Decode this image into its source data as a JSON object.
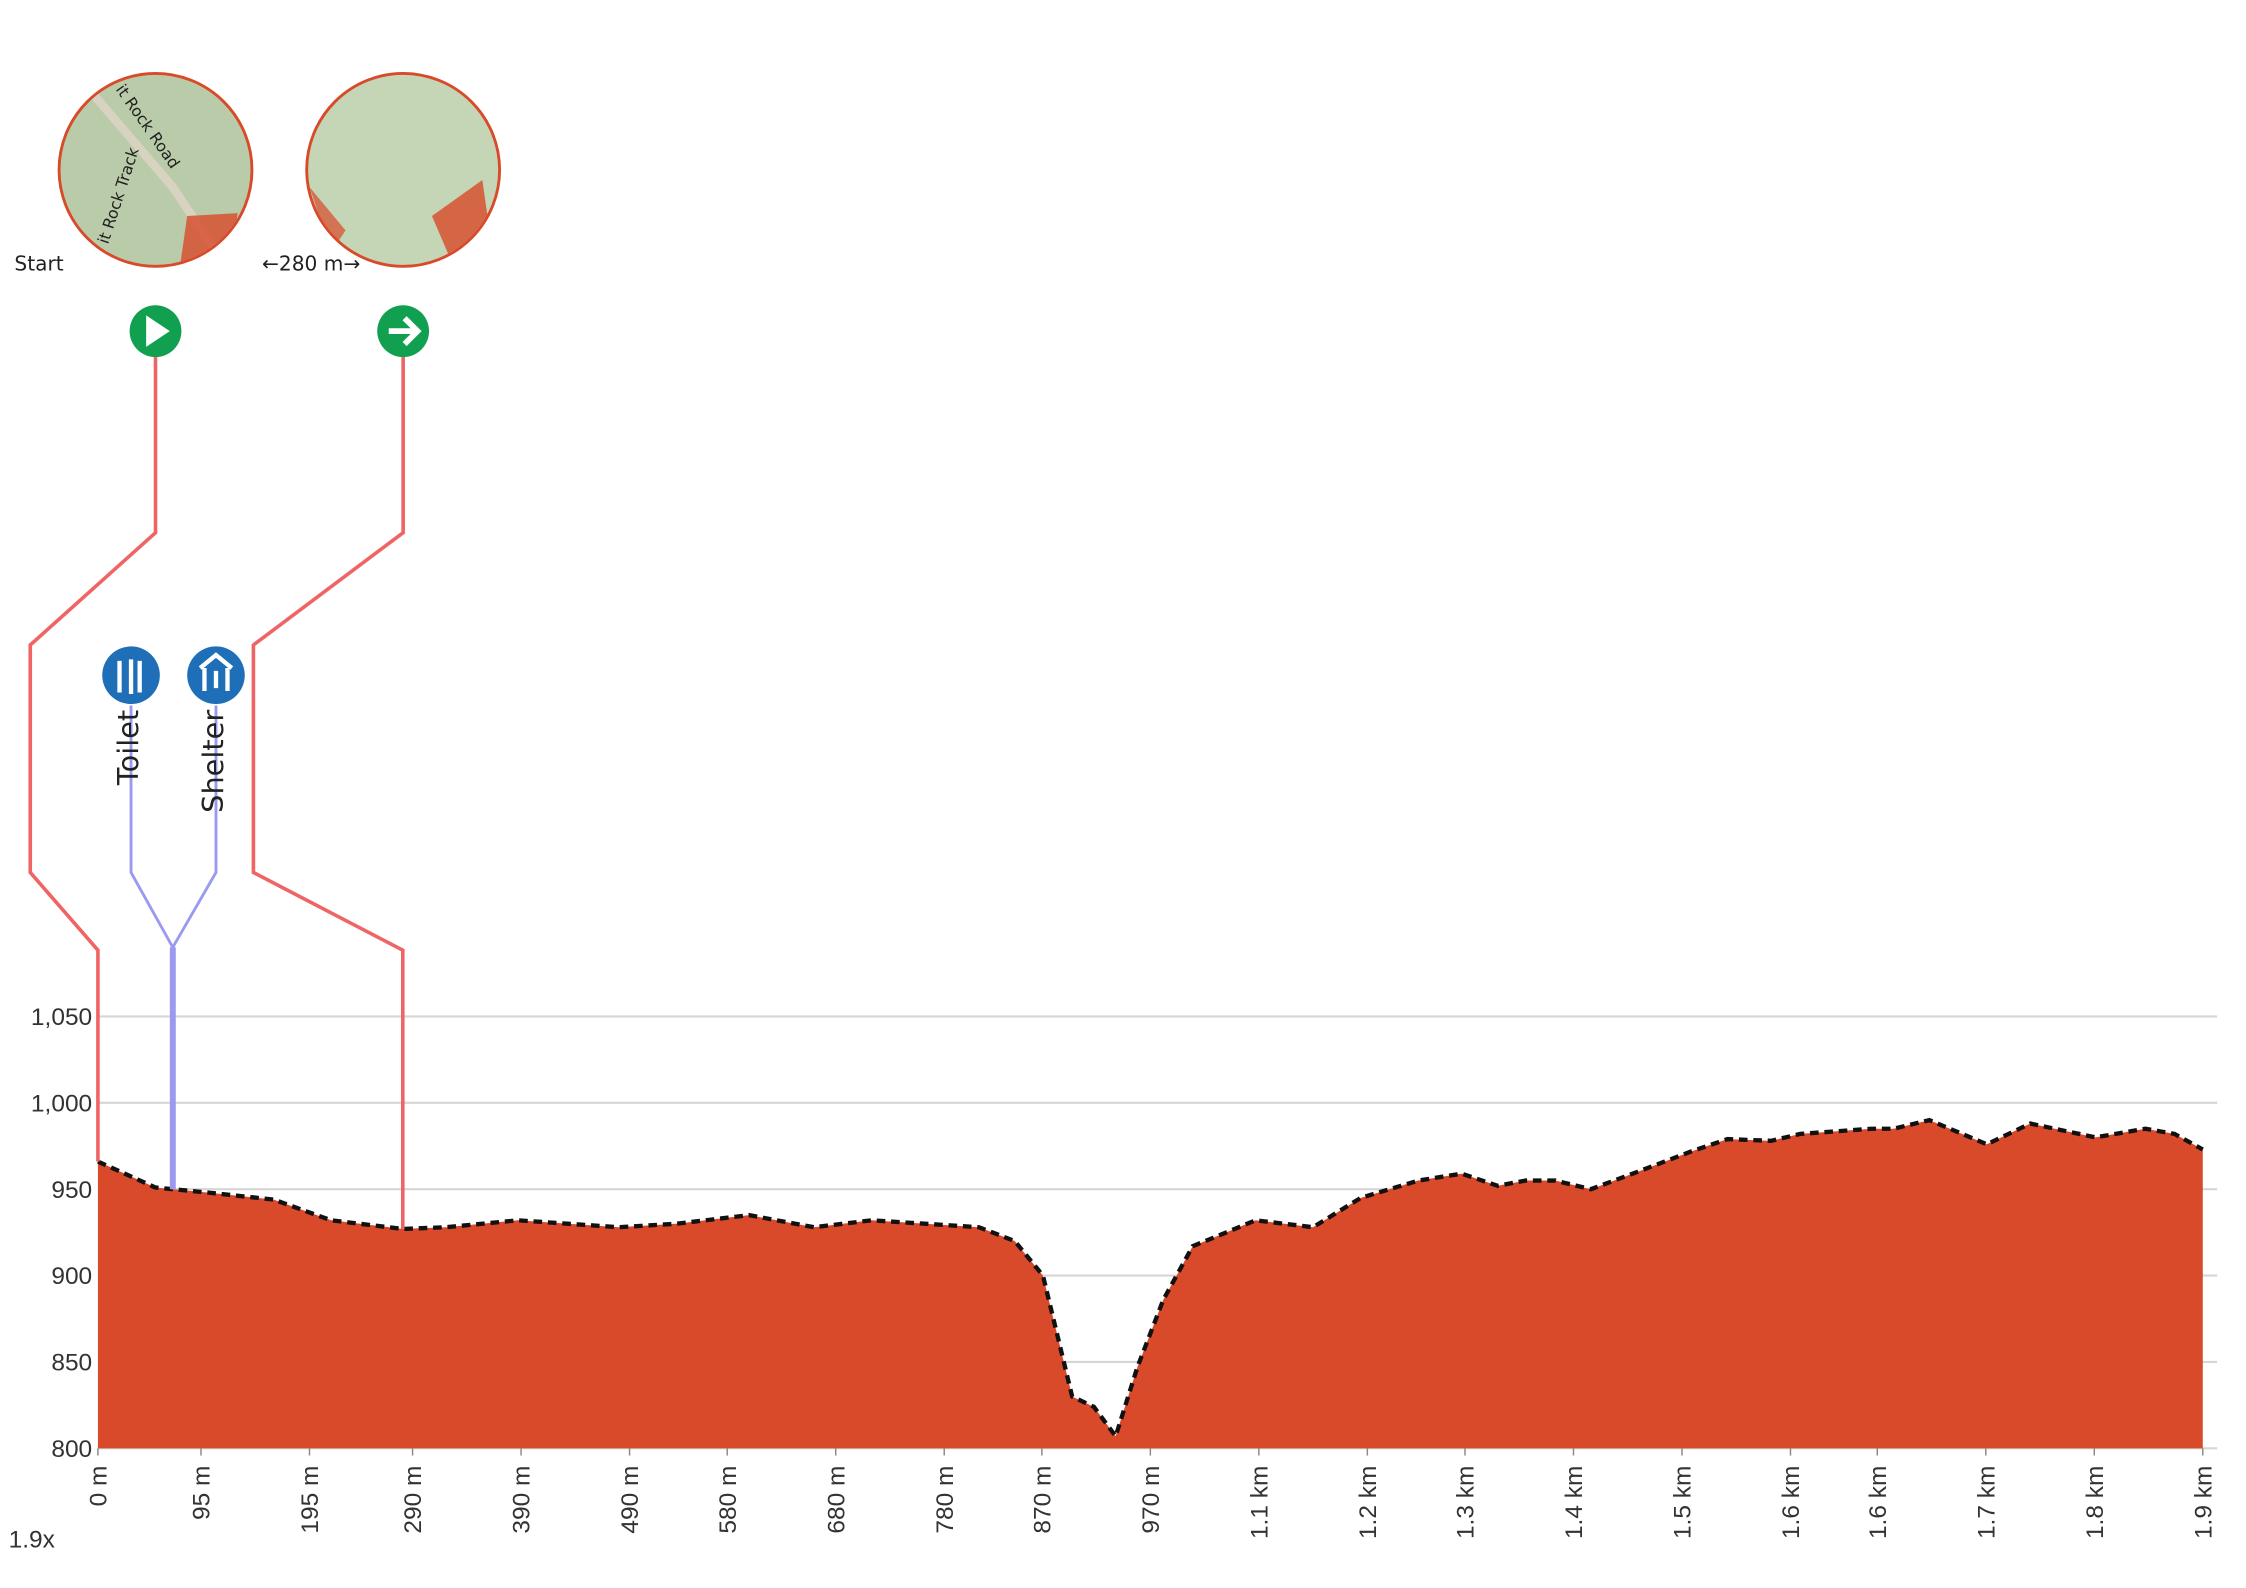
{
  "chart_data": {
    "type": "area",
    "zoom": "1.9x",
    "color": "#d84a2a",
    "line_color": "#111111",
    "grid": true,
    "x": [
      0,
      53,
      102,
      162,
      215,
      281,
      321,
      387,
      480,
      533,
      600,
      660,
      713,
      812,
      845,
      871,
      898,
      918,
      938,
      958,
      982,
      1009,
      1067,
      1120,
      1164,
      1217,
      1257,
      1290,
      1316,
      1343,
      1376,
      1423,
      1469,
      1502,
      1542,
      1569,
      1635,
      1655,
      1688,
      1741,
      1781,
      1841,
      1887,
      1914,
      1940
    ],
    "series": [
      {
        "values": [
          966,
          951,
          948,
          944,
          932,
          927,
          928,
          932,
          928,
          930,
          935,
          928,
          932,
          928,
          920,
          900,
          830,
          824,
          807,
          847,
          886,
          917,
          932,
          928,
          945,
          955,
          959,
          952,
          955,
          955,
          950,
          961,
          972,
          979,
          978,
          982,
          985,
          985,
          990,
          976,
          988,
          980,
          985,
          982,
          973
        ]
      }
    ],
    "xlim": [
      0,
      1940
    ],
    "xticks": [
      {
        "value": 0,
        "label": "0 m"
      },
      {
        "value": 95,
        "label": "95 m"
      },
      {
        "value": 195,
        "label": "195 m"
      },
      {
        "value": 290,
        "label": "290 m"
      },
      {
        "value": 390,
        "label": "390 m"
      },
      {
        "value": 490,
        "label": "490 m"
      },
      {
        "value": 580,
        "label": "580 m"
      },
      {
        "value": 680,
        "label": "680 m"
      },
      {
        "value": 780,
        "label": "780 m"
      },
      {
        "value": 870,
        "label": "870 m"
      },
      {
        "value": 970,
        "label": "970 m"
      },
      {
        "value": 1070,
        "label": "1.1 km"
      },
      {
        "value": 1170,
        "label": "1.2 km"
      },
      {
        "value": 1260,
        "label": "1.3 km"
      },
      {
        "value": 1360,
        "label": "1.4 km"
      },
      {
        "value": 1460,
        "label": "1.5 km"
      },
      {
        "value": 1560,
        "label": "1.6 km"
      },
      {
        "value": 1640,
        "label": "1.6 km"
      },
      {
        "value": 1740,
        "label": "1.7 km"
      },
      {
        "value": 1840,
        "label": "1.8 km"
      },
      {
        "value": 1940,
        "label": "1.9 km"
      }
    ],
    "ylim": [
      800,
      1050
    ],
    "yticks": [
      800,
      850,
      900,
      950,
      {
        "value": 1000,
        "label": "1,000"
      },
      {
        "value": 1050,
        "label": "1,050"
      }
    ],
    "waypoints": [
      {
        "label": "Start",
        "x": 0,
        "map_labels": [
          "it Rock Road",
          "it Rock Track"
        ]
      },
      {
        "label": "←280 m→",
        "x": 281,
        "map_labels": []
      }
    ],
    "pois": [
      {
        "label": "Toilet",
        "x": 69
      },
      {
        "label": "Shelter",
        "x": 69
      }
    ]
  }
}
